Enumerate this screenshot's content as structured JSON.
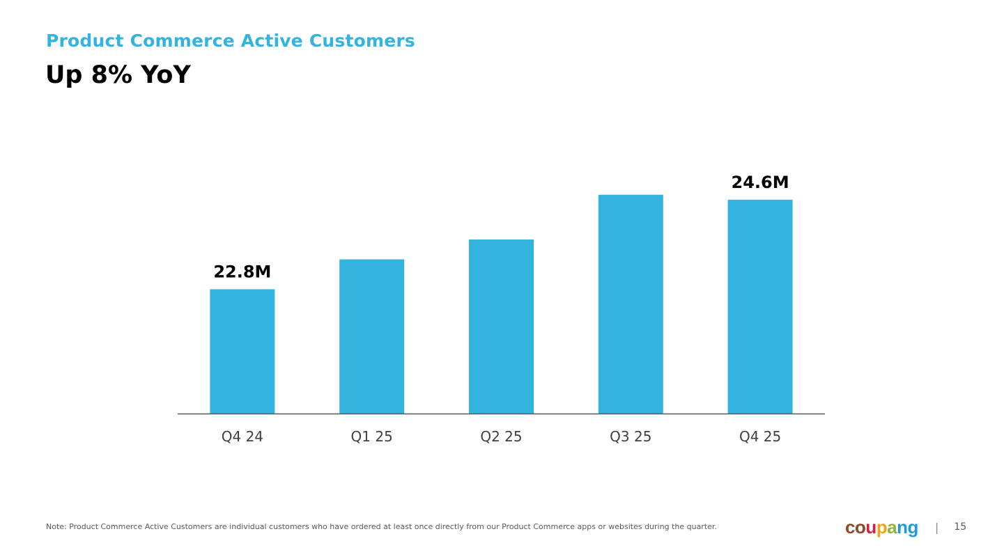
{
  "header": {
    "subtitle": "Product Commerce Active Customers",
    "title": "Up 8% YoY"
  },
  "colors": {
    "accent": "#32B4DE",
    "bar": "#32B4DE",
    "axis": "#595959",
    "tick_text": "#404040",
    "label_text": "#000000"
  },
  "chart_data": {
    "type": "bar",
    "title": "",
    "categories": [
      "Q4 24",
      "Q1 25",
      "Q2 25",
      "Q3 25",
      "Q4 25"
    ],
    "values": [
      22.8,
      23.4,
      23.8,
      24.7,
      24.6
    ],
    "unit": "M",
    "data_labels": [
      "22.8M",
      "",
      "",
      "",
      "24.6M"
    ],
    "xlabel": "",
    "ylabel": "",
    "ylim": [
      20.3,
      25.2
    ],
    "grid": false,
    "legend": "none"
  },
  "footer": {
    "note": "Note: Product Commerce Active Customers are individual customers who have ordered at least once directly from our Product Commerce apps or websites during the quarter.",
    "logo_text": "coupang",
    "logo_letters": [
      "c",
      "o",
      "u",
      "p",
      "a",
      "n",
      "g"
    ],
    "logo_colors": [
      "#8C4A26",
      "#8C4A26",
      "#D71E3F",
      "#F2A413",
      "#8FB73E",
      "#1E9BD8",
      "#1E9BD8"
    ],
    "separator": "|",
    "page_number": "15"
  }
}
